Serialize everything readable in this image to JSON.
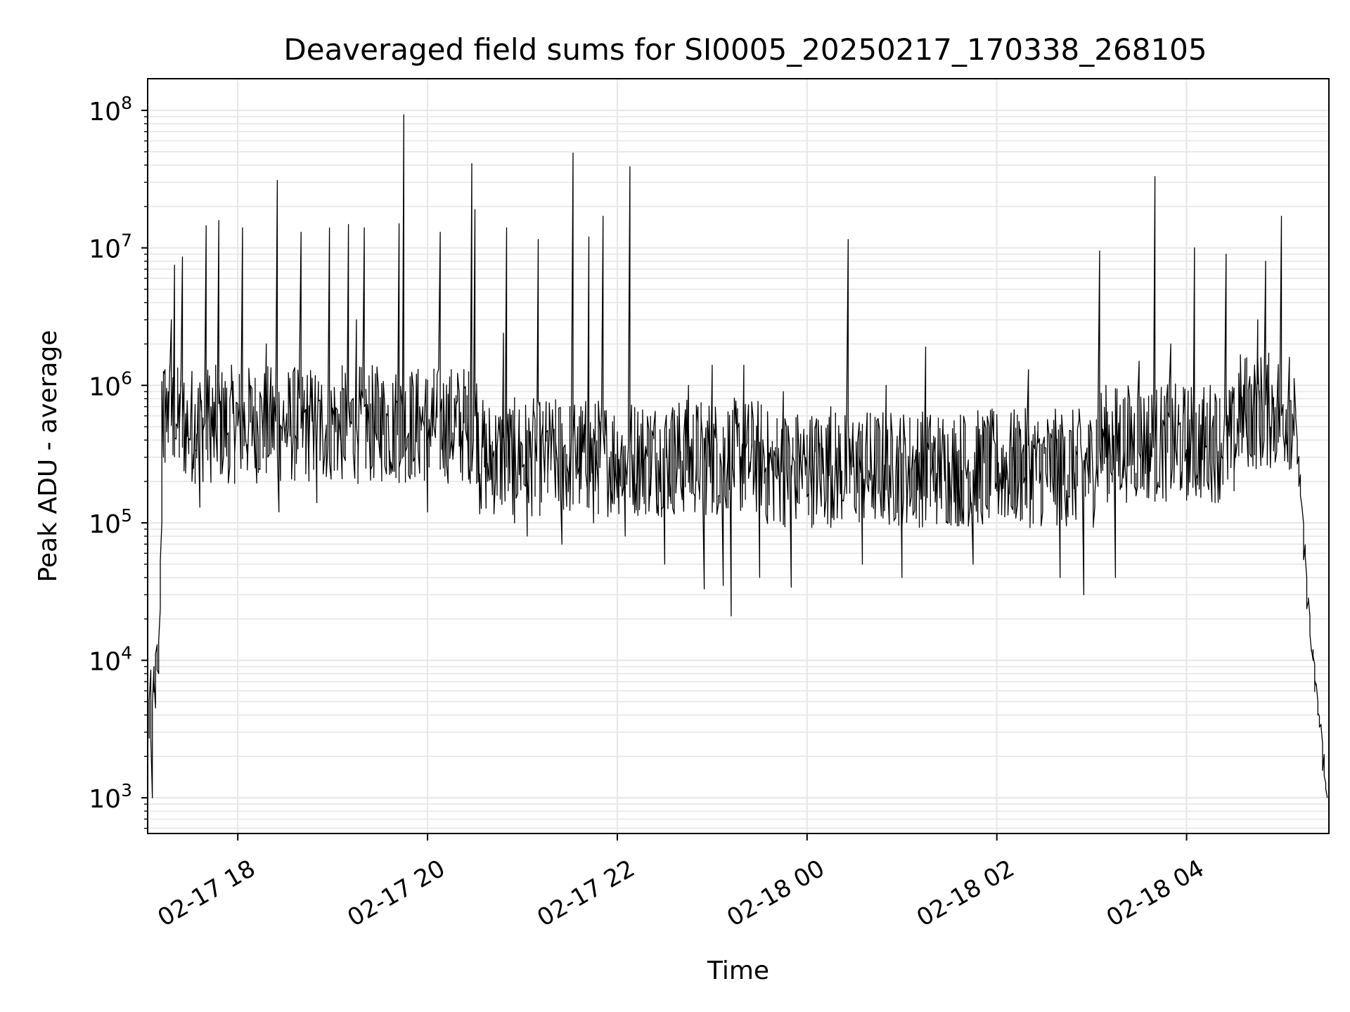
{
  "chart_data": {
    "type": "line",
    "title": "Deaveraged field sums for SI0005_20250217_170338_268105",
    "xlabel": "Time",
    "ylabel": "Peak ADU - average",
    "yscale": "log",
    "ylim": [
      550,
      170000000
    ],
    "xlim": [
      "2025-02-17 17:03",
      "2025-02-18 05:30"
    ],
    "grid": true,
    "line_color": "#000000",
    "grid_color": "#e6e6e6",
    "x_ticks": [
      {
        "label": "02-17 18",
        "value": "2025-02-17 18:00"
      },
      {
        "label": "02-17 20",
        "value": "2025-02-17 20:00"
      },
      {
        "label": "02-17 22",
        "value": "2025-02-17 22:00"
      },
      {
        "label": "02-18 00",
        "value": "2025-02-18 00:00"
      },
      {
        "label": "02-18 02",
        "value": "2025-02-18 02:00"
      },
      {
        "label": "02-18 04",
        "value": "2025-02-18 04:00"
      }
    ],
    "y_ticks": [
      {
        "base": "10",
        "exp": "3",
        "value": 1000
      },
      {
        "base": "10",
        "exp": "4",
        "value": 10000
      },
      {
        "base": "10",
        "exp": "5",
        "value": 100000
      },
      {
        "base": "10",
        "exp": "6",
        "value": 1000000
      },
      {
        "base": "10",
        "exp": "7",
        "value": 10000000
      },
      {
        "base": "10",
        "exp": "8",
        "value": 100000000
      }
    ],
    "series": [
      {
        "values_note": "",
        "points": [
          [
            "2025-02-17 17:04",
            2700
          ],
          [
            "2025-02-17 17:05",
            8500
          ],
          [
            "2025-02-17 17:06",
            1000
          ],
          [
            "2025-02-17 17:07",
            9000
          ],
          [
            "2025-02-17 17:08",
            4500
          ],
          [
            "2025-02-17 17:09",
            13000
          ],
          [
            "2025-02-17 17:10",
            8000
          ],
          [
            "2025-02-17 17:11",
            24000
          ],
          [
            "2025-02-17 17:12",
            100000
          ],
          [
            "2025-02-17 17:13",
            300000
          ],
          [
            "2025-02-17 17:14",
            1300000
          ],
          [
            "2025-02-17 17:16",
            900000
          ],
          [
            "2025-02-17 17:18",
            3000000
          ],
          [
            "2025-02-17 17:20",
            7500000
          ],
          [
            "2025-02-17 17:22",
            500000
          ],
          [
            "2025-02-17 17:25",
            8600000
          ],
          [
            "2025-02-17 17:30",
            400000
          ],
          [
            "2025-02-17 17:36",
            130000
          ],
          [
            "2025-02-17 17:40",
            14500000
          ],
          [
            "2025-02-17 17:45",
            300000
          ],
          [
            "2025-02-17 17:48",
            15800000
          ],
          [
            "2025-02-17 17:55",
            260000
          ],
          [
            "2025-02-17 18:03",
            14000000
          ],
          [
            "2025-02-17 18:10",
            700000
          ],
          [
            "2025-02-17 18:18",
            2000000
          ],
          [
            "2025-02-17 18:25",
            31000000
          ],
          [
            "2025-02-17 18:26",
            120000
          ],
          [
            "2025-02-17 18:32",
            500000
          ],
          [
            "2025-02-17 18:40",
            13000000
          ],
          [
            "2025-02-17 18:50",
            140000
          ],
          [
            "2025-02-17 18:58",
            14000000
          ],
          [
            "2025-02-17 19:05",
            400000
          ],
          [
            "2025-02-17 19:10",
            14800000
          ],
          [
            "2025-02-17 19:15",
            3000000
          ],
          [
            "2025-02-17 19:20",
            14000000
          ],
          [
            "2025-02-17 19:28",
            400000
          ],
          [
            "2025-02-17 19:35",
            600000
          ],
          [
            "2025-02-17 19:42",
            15000000
          ],
          [
            "2025-02-17 19:45",
            93000000
          ],
          [
            "2025-02-17 19:52",
            300000
          ],
          [
            "2025-02-17 19:58",
            500000
          ],
          [
            "2025-02-17 20:00",
            120000
          ],
          [
            "2025-02-17 20:08",
            13000000
          ],
          [
            "2025-02-17 20:15",
            400000
          ],
          [
            "2025-02-17 20:25",
            400000
          ],
          [
            "2025-02-17 20:28",
            41000000
          ],
          [
            "2025-02-17 20:30",
            19000000
          ],
          [
            "2025-02-17 20:38",
            200000
          ],
          [
            "2025-02-17 20:48",
            2400000
          ],
          [
            "2025-02-17 20:50",
            14000000
          ],
          [
            "2025-02-17 20:55",
            100000
          ],
          [
            "2025-02-17 21:03",
            80000
          ],
          [
            "2025-02-17 21:10",
            11500000
          ],
          [
            "2025-02-17 21:20",
            300000
          ],
          [
            "2025-02-17 21:25",
            70000
          ],
          [
            "2025-02-17 21:32",
            49000000
          ],
          [
            "2025-02-17 21:35",
            500000
          ],
          [
            "2025-02-17 21:42",
            12000000
          ],
          [
            "2025-02-17 21:45",
            100000
          ],
          [
            "2025-02-17 21:51",
            17000000
          ],
          [
            "2025-02-17 21:55",
            300000
          ],
          [
            "2025-02-17 22:05",
            80000
          ],
          [
            "2025-02-17 22:08",
            39000000
          ],
          [
            "2025-02-17 22:15",
            300000
          ],
          [
            "2025-02-17 22:30",
            50000
          ],
          [
            "2025-02-17 22:45",
            1000000
          ],
          [
            "2025-02-17 22:55",
            33000
          ],
          [
            "2025-02-17 23:00",
            1400000
          ],
          [
            "2025-02-17 23:07",
            35000
          ],
          [
            "2025-02-17 23:12",
            21000
          ],
          [
            "2025-02-17 23:20",
            1400000
          ],
          [
            "2025-02-17 23:30",
            40000
          ],
          [
            "2025-02-17 23:40",
            300000
          ],
          [
            "2025-02-17 23:45",
            900000
          ],
          [
            "2025-02-17 23:50",
            34000
          ],
          [
            "2025-02-18 00:00",
            250000
          ],
          [
            "2025-02-18 00:15",
            700000
          ],
          [
            "2025-02-18 00:26",
            11500000
          ],
          [
            "2025-02-18 00:35",
            50000
          ],
          [
            "2025-02-18 00:50",
            1000000
          ],
          [
            "2025-02-18 01:00",
            40000
          ],
          [
            "2025-02-18 01:15",
            1900000
          ],
          [
            "2025-02-18 01:30",
            100000
          ],
          [
            "2025-02-18 01:45",
            50000
          ],
          [
            "2025-02-18 02:00",
            200000
          ],
          [
            "2025-02-18 02:20",
            1300000
          ],
          [
            "2025-02-18 02:40",
            40000
          ],
          [
            "2025-02-18 02:55",
            30000
          ],
          [
            "2025-02-18 03:05",
            9500000
          ],
          [
            "2025-02-18 03:15",
            40000
          ],
          [
            "2025-02-18 03:30",
            1500000
          ],
          [
            "2025-02-18 03:40",
            33000000
          ],
          [
            "2025-02-18 03:50",
            2000000
          ],
          [
            "2025-02-18 04:05",
            10000000
          ],
          [
            "2025-02-18 04:15",
            1000000
          ],
          [
            "2025-02-18 04:25",
            9000000
          ],
          [
            "2025-02-18 04:35",
            500000
          ],
          [
            "2025-02-18 04:45",
            3000000
          ],
          [
            "2025-02-18 04:50",
            8000000
          ],
          [
            "2025-02-18 04:55",
            600000
          ],
          [
            "2025-02-18 05:00",
            17000000
          ],
          [
            "2025-02-18 05:05",
            1600000
          ],
          [
            "2025-02-18 05:10",
            400000
          ],
          [
            "2025-02-18 05:13",
            130000
          ],
          [
            "2025-02-18 05:16",
            40000
          ],
          [
            "2025-02-18 05:20",
            10000
          ],
          [
            "2025-02-18 05:23",
            5000
          ],
          [
            "2025-02-18 05:26",
            2500
          ],
          [
            "2025-02-18 05:29",
            1000
          ]
        ]
      }
    ]
  }
}
